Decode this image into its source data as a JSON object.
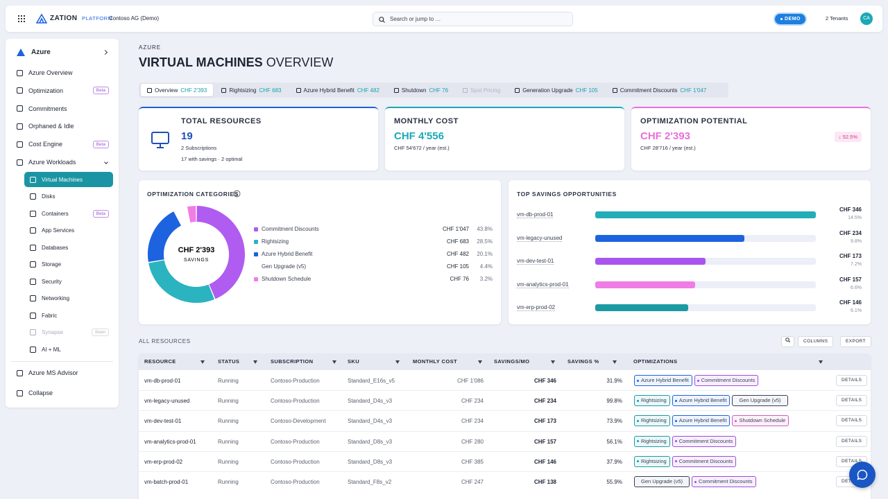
{
  "header": {
    "brand": "ZATION",
    "platform": "PLATFORM",
    "org": "Contoso AG (Demo)",
    "search": "Search or jump to …",
    "env_badge": "DEMO",
    "tenants": "2 Tenants",
    "avatar": "CA"
  },
  "sidebar": {
    "section": "Azure",
    "items": [
      {
        "label": "Azure Overview"
      },
      {
        "label": "Optimization",
        "badge": "Beta"
      },
      {
        "label": "Commitments"
      },
      {
        "label": "Orphaned & Idle"
      },
      {
        "label": "Cost Engine",
        "badge": "Beta"
      }
    ],
    "group_label": "Azure Workloads",
    "workloads": [
      {
        "label": "Virtual Machines",
        "active": true
      },
      {
        "label": "Disks"
      },
      {
        "label": "Containers",
        "badge": "Beta"
      },
      {
        "label": "App Services"
      },
      {
        "label": "Databases"
      },
      {
        "label": "Storage"
      },
      {
        "label": "Security"
      },
      {
        "label": "Networking"
      },
      {
        "label": "Fabric"
      },
      {
        "label": "Synapse",
        "badge": "Soon",
        "disabled": true
      },
      {
        "label": "AI + ML"
      }
    ],
    "footer": [
      {
        "label": "Azure MS Advisor"
      },
      {
        "label": "Collapse"
      }
    ]
  },
  "page": {
    "eyebrow": "AZURE",
    "title": "VIRTUAL MACHINES",
    "title_suffix": "OVERVIEW"
  },
  "tabs": [
    {
      "label": "Overview",
      "amount": "CHF 2'393",
      "active": true
    },
    {
      "label": "Rightsizing",
      "amount": "CHF 683"
    },
    {
      "label": "Azure Hybrid Benefit",
      "amount": "CHF 482"
    },
    {
      "label": "Shutdown",
      "amount": "CHF 76"
    },
    {
      "label": "Spot Pricing",
      "disabled": true
    },
    {
      "label": "Generation Upgrade",
      "amount": "CHF 105"
    },
    {
      "label": "Commitment Discounts",
      "amount": "CHF 1'047"
    }
  ],
  "kpis": [
    {
      "title": "TOTAL RESOURCES",
      "value": "19",
      "lines": [
        "2 Subscriptions",
        "17 with savings · 2 optimal"
      ],
      "color": "#1f5fd6"
    },
    {
      "title": "MONTHLY COST",
      "value": "CHF 4'556",
      "lines": [
        "CHF 54'672 / year (est.)"
      ],
      "color": "#1aa9b5"
    },
    {
      "title": "OPTIMIZATION POTENTIAL",
      "value": "CHF 2'393",
      "lines": [
        "CHF 28'716 / year (est.)"
      ],
      "badge": "↓ 52.5%",
      "color": "#e86fd8"
    }
  ],
  "optimization_categories": {
    "type": "pie",
    "title": "OPTIMIZATION CATEGORIES",
    "center_value": "CHF 2'393",
    "center_label": "SAVINGS",
    "categories": [
      "Commitment Discounts",
      "Rightsizing",
      "Azure Hybrid Benefit",
      "Gen Upgrade (v5)",
      "Shutdown Schedule"
    ],
    "values": [
      1047,
      683,
      482,
      105,
      76
    ],
    "value_labels": [
      "CHF 1'047",
      "CHF 683",
      "CHF 482",
      "CHF 105",
      "CHF 76"
    ],
    "shares": [
      43.8,
      28.5,
      20.1,
      4.4,
      3.2
    ],
    "share_labels": [
      "43.8%",
      "28.5%",
      "20.1%",
      "4.4%",
      "3.2%"
    ],
    "colors": [
      "#b05cf0",
      "#2bb3c0",
      "#1d63e0",
      "#ffffff",
      "#f27ce6"
    ]
  },
  "top_savings": {
    "type": "bar",
    "title": "TOP SAVINGS OPPORTUNITIES",
    "categories": [
      "vm-db-prod-01",
      "vm-legacy-unused",
      "vm-dev-test-01",
      "vm-analytics-prod-01",
      "vm-erp-prod-02"
    ],
    "values": [
      346,
      234,
      173,
      157,
      146
    ],
    "value_labels": [
      "CHF 346",
      "CHF 234",
      "CHF 173",
      "CHF 157",
      "CHF 146"
    ],
    "shares": [
      14.5,
      9.8,
      7.2,
      6.6,
      6.1
    ],
    "share_labels": [
      "14.5%",
      "9.8%",
      "7.2%",
      "6.6%",
      "6.1%"
    ],
    "colors": [
      "#22adb8",
      "#1d63e0",
      "#a855f0",
      "#f07ce6",
      "#1c9aa3"
    ]
  },
  "resources": {
    "title": "ALL RESOURCES",
    "actions": [
      "COLUMNS",
      "EXPORT"
    ],
    "columns": [
      "RESOURCE",
      "STATUS",
      "SUBSCRIPTION",
      "SKU",
      "MONTHLY COST",
      "SAVINGS/MO",
      "SAVINGS %",
      "OPTIMIZATIONS"
    ],
    "rows": [
      {
        "cells": [
          "vm-db-prod-01",
          "Running",
          "Contoso-Production",
          "Standard_E16s_v5",
          "CHF 1'086",
          "CHF 346",
          "31.9%"
        ],
        "optimizations": [
          "Azure Hybrid Benefit",
          "Commitment Discounts"
        ],
        "action": "DETAILS"
      },
      {
        "cells": [
          "vm-legacy-unused",
          "Running",
          "Contoso-Production",
          "Standard_D4s_v3",
          "CHF 234",
          "CHF 234",
          "99.8%"
        ],
        "optimizations": [
          "Rightsizing",
          "Azure Hybrid Benefit",
          "Gen Upgrade (v5)"
        ],
        "action": "DETAILS"
      },
      {
        "cells": [
          "vm-dev-test-01",
          "Running",
          "Contoso-Development",
          "Standard_D4s_v3",
          "CHF 234",
          "CHF 173",
          "73.9%"
        ],
        "optimizations": [
          "Rightsizing",
          "Azure Hybrid Benefit",
          "Shutdown Schedule"
        ],
        "action": "DETAILS"
      },
      {
        "cells": [
          "vm-analytics-prod-01",
          "Running",
          "Contoso-Production",
          "Standard_D8s_v3",
          "CHF 280",
          "CHF 157",
          "56.1%"
        ],
        "optimizations": [
          "Rightsizing",
          "Commitment Discounts"
        ],
        "action": "DETAILS"
      },
      {
        "cells": [
          "vm-erp-prod-02",
          "Running",
          "Contoso-Production",
          "Standard_D8s_v3",
          "CHF 385",
          "CHF 146",
          "37.9%"
        ],
        "optimizations": [
          "Rightsizing",
          "Commitment Discounts"
        ],
        "action": "DETAILS"
      },
      {
        "cells": [
          "vm-batch-prod-01",
          "Running",
          "Contoso-Production",
          "Standard_F8s_v2",
          "CHF 247",
          "CHF 138",
          "55.9%"
        ],
        "optimizations": [
          "Gen Upgrade (v5)",
          "Commitment Discounts"
        ],
        "action": "DETAILS"
      }
    ]
  }
}
